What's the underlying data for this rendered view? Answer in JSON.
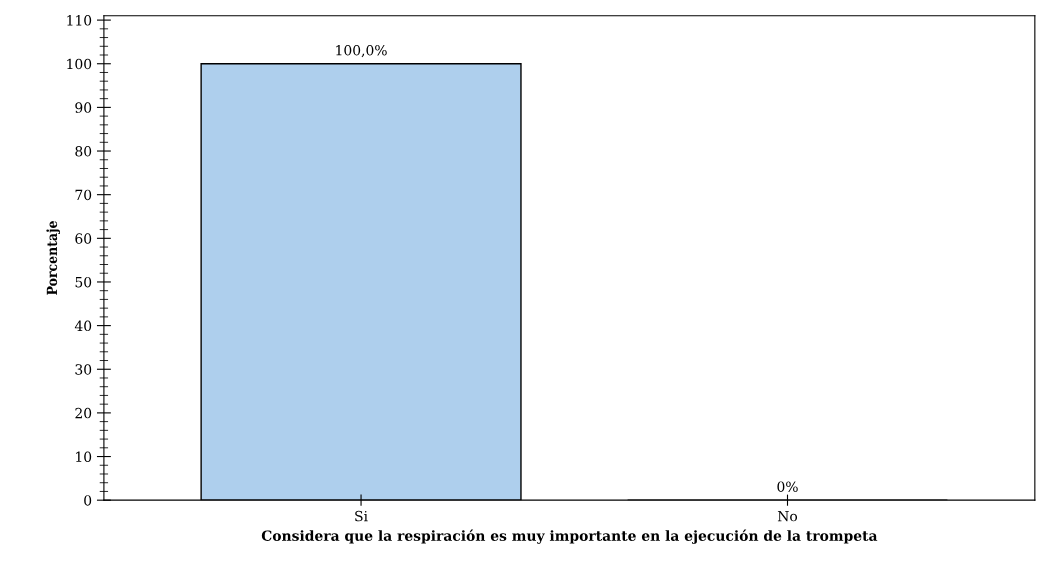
{
  "chart_data": {
    "type": "bar",
    "xlabel": "Considera que la respiración es muy importante en la ejecución de la trompeta",
    "ylabel": "Porcentaje",
    "categories": [
      "Si",
      "No"
    ],
    "values": [
      100,
      0
    ],
    "value_labels": [
      "100,0%",
      "0%"
    ],
    "color": "#aecfed",
    "ylim": [
      0,
      111
    ],
    "yticks": [
      0,
      10,
      20,
      30,
      40,
      50,
      60,
      70,
      80,
      90,
      100,
      110
    ],
    "grid": false,
    "legend": false
  }
}
